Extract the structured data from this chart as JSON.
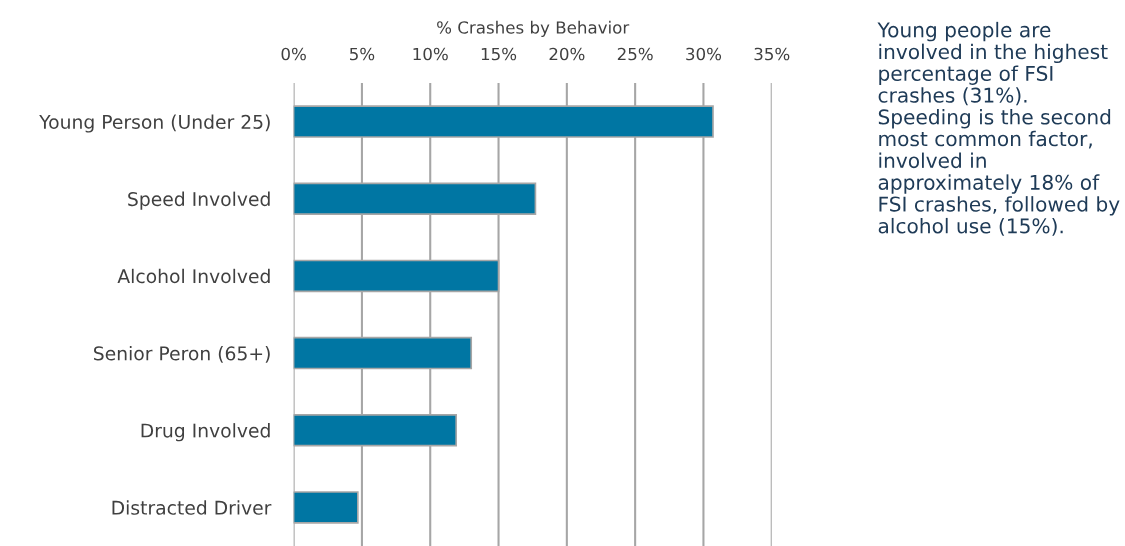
{
  "chart_data": {
    "type": "bar",
    "orientation": "horizontal",
    "xlabel": "% Crashes by Behavior",
    "categories": [
      "Young Person (Under 25)",
      "Speed Involved",
      "Alcohol Involved",
      "Senior Peron (65+)",
      "Drug Involved",
      "Distracted Driver"
    ],
    "values": [
      30.7,
      17.7,
      15.0,
      13.0,
      11.9,
      4.7
    ],
    "color": "#0076a3",
    "xlim": [
      0,
      35
    ],
    "xticks": [
      {
        "value": 0,
        "label": "0%"
      },
      {
        "value": 5,
        "label": "5%"
      },
      {
        "value": 10,
        "label": "10%"
      },
      {
        "value": 15,
        "label": "15%"
      },
      {
        "value": 20,
        "label": "20%"
      },
      {
        "value": 25,
        "label": "25%"
      },
      {
        "value": 30,
        "label": "30%"
      },
      {
        "value": 35,
        "label": "35%"
      }
    ],
    "grid": "x",
    "annotations": [
      "Young people are involved in the highest percentage of FSI crashes (31%). Speeding is the second most common factor, involved in approximately 18% of FSI crashes, followed by alcohol use (15%)."
    ]
  }
}
